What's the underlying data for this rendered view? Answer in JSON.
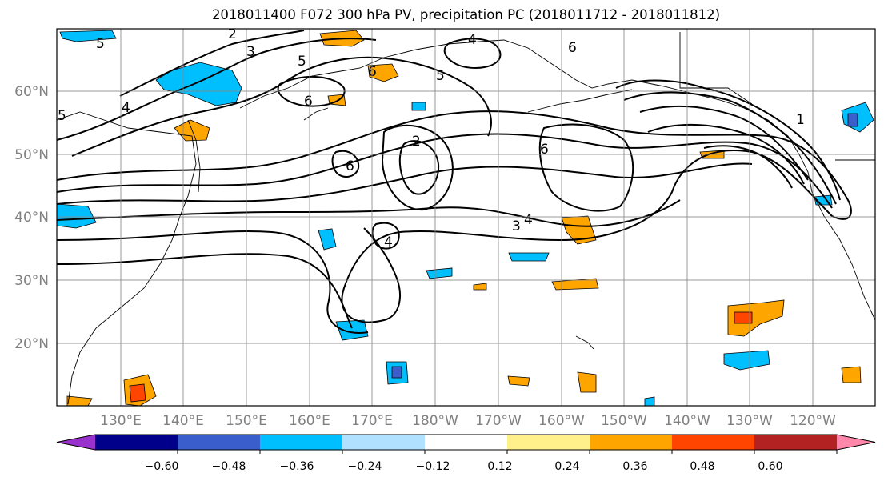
{
  "title": "2018011400 F072 300 hPa PV, precipitation PC (2018011712 - 2018011812)",
  "map": {
    "lat_labels": [
      "60°N",
      "50°N",
      "40°N",
      "30°N",
      "20°N"
    ],
    "lon_labels": [
      "130°E",
      "140°E",
      "150°E",
      "160°E",
      "170°E",
      "180°W",
      "170°W",
      "160°W",
      "150°W",
      "140°W",
      "130°W",
      "120°W"
    ],
    "contour_labels": [
      {
        "text": "5"
      },
      {
        "text": "2"
      },
      {
        "text": "3"
      },
      {
        "text": "5"
      },
      {
        "text": "4"
      },
      {
        "text": "6"
      },
      {
        "text": "5"
      },
      {
        "text": "4"
      },
      {
        "text": "6"
      },
      {
        "text": "6"
      },
      {
        "text": "2"
      },
      {
        "text": "6"
      },
      {
        "text": "1"
      },
      {
        "text": "3"
      },
      {
        "text": "4"
      },
      {
        "text": "4"
      },
      {
        "text": "6"
      },
      {
        "text": "5"
      }
    ]
  },
  "colorbar": {
    "tick_labels": [
      "−0.60",
      "−0.48",
      "−0.36",
      "−0.24",
      "−0.12",
      "0.12",
      "0.24",
      "0.36",
      "0.48",
      "0.60"
    ],
    "colors": [
      "#9932cc",
      "#00008b",
      "#3a5fcd",
      "#00bfff",
      "#b0e2ff",
      "#ffffff",
      "#fff08c",
      "#ffa500",
      "#ff4500",
      "#b22222",
      "#ff88aa"
    ]
  }
}
